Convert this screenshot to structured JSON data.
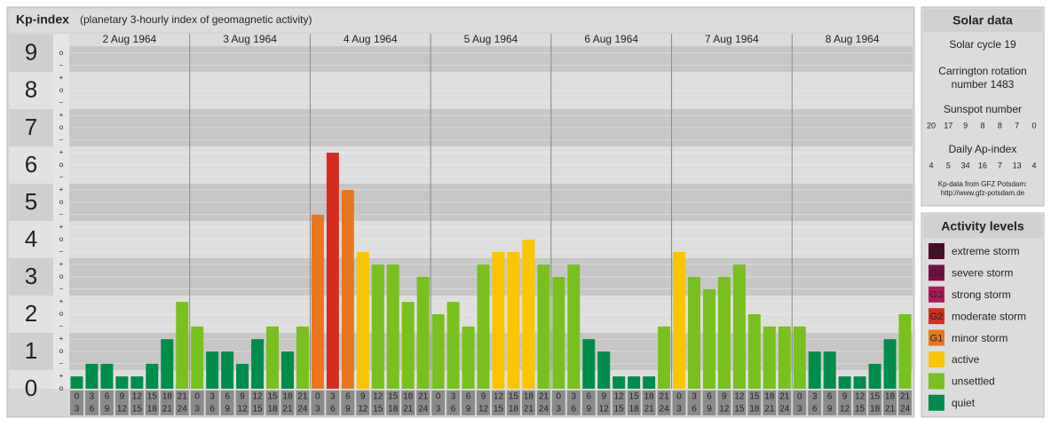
{
  "chart_data": {
    "type": "bar",
    "title": "Kp-index",
    "subtitle": "(planetary 3-hourly index of geomagnetic activity)",
    "ylim": [
      0,
      9.52
    ],
    "yticks": [
      0,
      1,
      2,
      3,
      4,
      5,
      6,
      7,
      8,
      9
    ],
    "minor_yticks": [
      {
        "value": 0,
        "label": "o"
      },
      {
        "value": 0.33,
        "label": "+"
      },
      {
        "value": 0.67,
        "label": "−"
      },
      {
        "value": 1,
        "label": "o"
      },
      {
        "value": 1.33,
        "label": "+"
      },
      {
        "value": 1.67,
        "label": "−"
      },
      {
        "value": 2,
        "label": "o"
      },
      {
        "value": 2.33,
        "label": "+"
      },
      {
        "value": 2.67,
        "label": "−"
      },
      {
        "value": 3,
        "label": "o"
      },
      {
        "value": 3.33,
        "label": "+"
      },
      {
        "value": 3.67,
        "label": "−"
      },
      {
        "value": 4,
        "label": "o"
      },
      {
        "value": 4.33,
        "label": "+"
      },
      {
        "value": 4.67,
        "label": "−"
      },
      {
        "value": 5,
        "label": "o"
      },
      {
        "value": 5.33,
        "label": "+"
      },
      {
        "value": 5.67,
        "label": "−"
      },
      {
        "value": 6,
        "label": "o"
      },
      {
        "value": 6.33,
        "label": "+"
      },
      {
        "value": 6.67,
        "label": "−"
      },
      {
        "value": 7,
        "label": "o"
      },
      {
        "value": 7.33,
        "label": "+"
      },
      {
        "value": 7.67,
        "label": "−"
      },
      {
        "value": 8,
        "label": "o"
      },
      {
        "value": 8.33,
        "label": "+"
      },
      {
        "value": 8.67,
        "label": "−"
      },
      {
        "value": 9,
        "label": "o"
      }
    ],
    "hours": [
      [
        "0",
        "3"
      ],
      [
        "3",
        "6"
      ],
      [
        "6",
        "9"
      ],
      [
        "9",
        "12"
      ],
      [
        "12",
        "15"
      ],
      [
        "15",
        "18"
      ],
      [
        "18",
        "21"
      ],
      [
        "21",
        "24"
      ]
    ],
    "days": [
      {
        "date": "2 Aug 1964",
        "values": [
          0.33,
          0.67,
          0.67,
          0.33,
          0.33,
          0.67,
          1.33,
          2.33
        ],
        "colors": [
          "#008c4b",
          "#008c4b",
          "#008c4b",
          "#008c4b",
          "#008c4b",
          "#008c4b",
          "#008c4b",
          "#78c01e"
        ]
      },
      {
        "date": "3 Aug 1964",
        "values": [
          1.67,
          1,
          1,
          0.67,
          1.33,
          1.67,
          1,
          1.67
        ],
        "colors": [
          "#78c01e",
          "#008c4b",
          "#008c4b",
          "#008c4b",
          "#008c4b",
          "#78c01e",
          "#008c4b",
          "#78c01e"
        ]
      },
      {
        "date": "4 Aug 1964",
        "values": [
          4.67,
          6.33,
          5.33,
          3.67,
          3.33,
          3.33,
          2.33,
          3
        ],
        "colors": [
          "#e8761d",
          "#d42d1f",
          "#e8761d",
          "#f9c400",
          "#78c01e",
          "#78c01e",
          "#78c01e",
          "#78c01e"
        ]
      },
      {
        "date": "5 Aug 1964",
        "values": [
          2,
          2.33,
          1.67,
          3.33,
          3.67,
          3.67,
          4,
          3.33
        ],
        "colors": [
          "#78c01e",
          "#78c01e",
          "#78c01e",
          "#78c01e",
          "#f9c400",
          "#f9c400",
          "#f9c400",
          "#78c01e"
        ]
      },
      {
        "date": "6 Aug 1964",
        "values": [
          3,
          3.33,
          1.33,
          1,
          0.33,
          0.33,
          0.33,
          1.67
        ],
        "colors": [
          "#78c01e",
          "#78c01e",
          "#008c4b",
          "#008c4b",
          "#008c4b",
          "#008c4b",
          "#008c4b",
          "#78c01e"
        ]
      },
      {
        "date": "7 Aug 1964",
        "values": [
          3.67,
          3,
          2.67,
          3,
          3.33,
          2,
          1.67,
          1.67
        ],
        "colors": [
          "#f9c400",
          "#78c01e",
          "#78c01e",
          "#78c01e",
          "#78c01e",
          "#78c01e",
          "#78c01e",
          "#78c01e"
        ]
      },
      {
        "date": "8 Aug 1964",
        "values": [
          1.67,
          1,
          1,
          0.33,
          0.33,
          0.67,
          1.33,
          2
        ],
        "colors": [
          "#78c01e",
          "#008c4b",
          "#008c4b",
          "#008c4b",
          "#008c4b",
          "#008c4b",
          "#008c4b",
          "#78c01e"
        ]
      }
    ]
  },
  "solar": {
    "title": "Solar data",
    "cycle": "Solar cycle 19",
    "carrington": [
      "Carrington rotation",
      "number 1483"
    ],
    "sunspot_title": "Sunspot number",
    "sunspot": [
      20,
      17,
      9,
      8,
      8,
      7,
      0
    ],
    "ap_title": "Daily Ap-index",
    "ap": [
      4,
      5,
      34,
      16,
      7,
      13,
      4
    ],
    "source": [
      "Kp-data from GFZ Potsdam:",
      "http://www.gfz-potsdam.de"
    ]
  },
  "levels": {
    "title": "Activity levels",
    "items": [
      {
        "code": "G5",
        "name": "extreme storm",
        "color": "#4d0a2a"
      },
      {
        "code": "G4",
        "name": "severe storm",
        "color": "#7a0f45"
      },
      {
        "code": "G3",
        "name": "strong storm",
        "color": "#b3185c"
      },
      {
        "code": "G2",
        "name": "moderate storm",
        "color": "#d42d1f"
      },
      {
        "code": "G1",
        "name": "minor storm",
        "color": "#e8761d"
      },
      {
        "name": "active",
        "color": "#f9c400"
      },
      {
        "name": "unsettled",
        "color": "#78c01e"
      },
      {
        "name": "quiet",
        "color": "#008c4b"
      }
    ]
  }
}
